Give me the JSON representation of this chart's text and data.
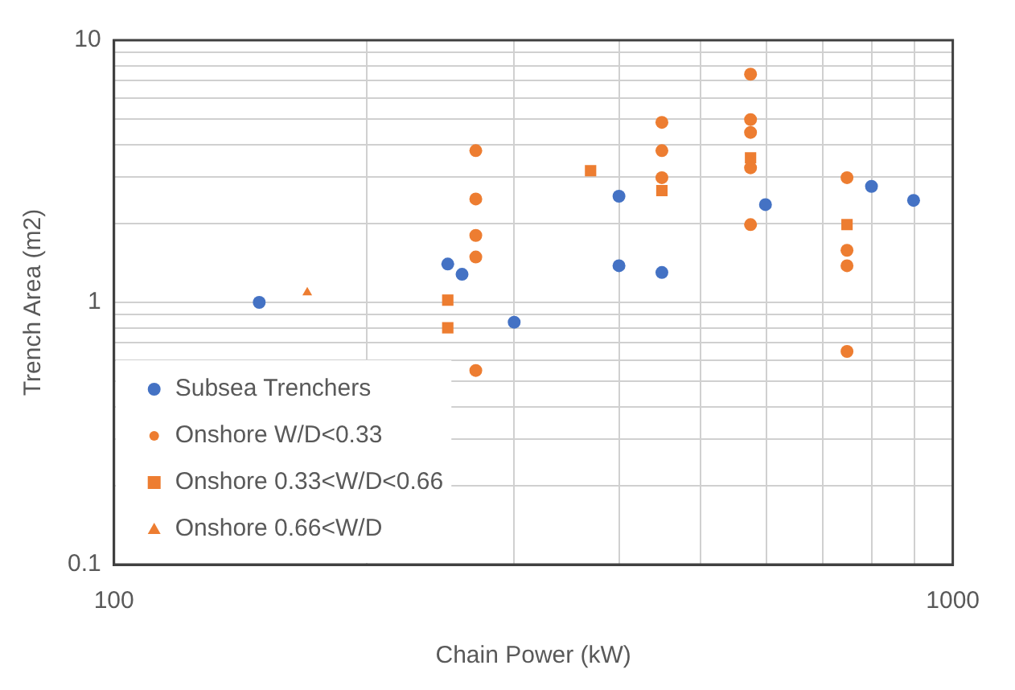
{
  "chart_data": {
    "type": "scatter",
    "xlabel": "Chain Power (kW)",
    "ylabel": "Trench Area (m2)",
    "log": "xy",
    "xlim": [
      100,
      1000
    ],
    "ylim": [
      0.1,
      10
    ],
    "xticks": [
      100,
      1000
    ],
    "yticks": [
      0.1,
      1,
      10
    ],
    "grid": true,
    "legend": "bottom left",
    "series": [
      {
        "name": "Subsea Trenchers",
        "color": "#4472c4",
        "marker": "circle",
        "x": [
          149,
          250,
          260,
          300,
          400,
          400,
          450,
          598,
          800,
          898
        ],
        "values": [
          1.0,
          1.4,
          1.28,
          0.84,
          2.54,
          1.38,
          1.3,
          2.36,
          2.77,
          2.45
        ]
      },
      {
        "name": "Onshore W/D<0.33",
        "color": "#ed7d31",
        "marker": "circle",
        "x": [
          270,
          270,
          270,
          270,
          270,
          450,
          450,
          450,
          574,
          574,
          574,
          574,
          574,
          748,
          748,
          748,
          748
        ],
        "values": [
          3.79,
          2.48,
          1.8,
          1.49,
          0.55,
          4.86,
          3.79,
          2.99,
          7.42,
          4.98,
          4.45,
          3.26,
          1.98,
          2.99,
          1.58,
          1.38,
          0.65
        ]
      },
      {
        "name": "Onshore 0.33<W/D<0.66",
        "color": "#ed7d31",
        "marker": "square",
        "x": [
          370,
          450,
          574,
          748,
          250,
          250
        ],
        "values": [
          3.18,
          2.67,
          3.56,
          1.98,
          1.02,
          0.8
        ]
      },
      {
        "name": "Onshore 0.66<W/D",
        "color": "#ed7d31",
        "marker": "triangle",
        "x": [
          170
        ],
        "values": [
          1.09
        ]
      }
    ]
  }
}
